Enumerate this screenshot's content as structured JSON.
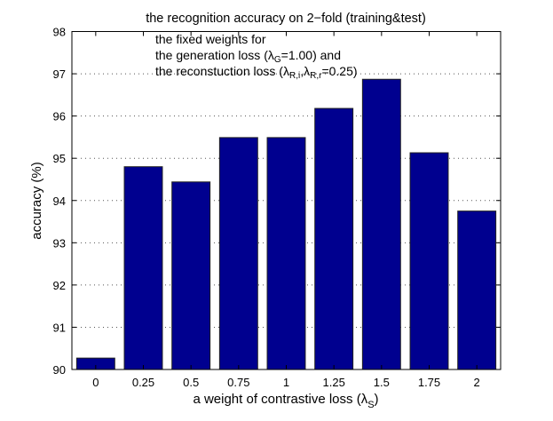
{
  "chart_data": {
    "type": "bar",
    "title": "the recognition accuracy on 2−fold (training&test)",
    "xlabel": "a weight of contrastive loss (λ",
    "xlabel_sub": "S",
    "xlabel_end": ")",
    "ylabel": "accuracy (%)",
    "categories": [
      "0",
      "0.25",
      "0.5",
      "0.75",
      "1",
      "1.25",
      "1.5",
      "1.75",
      "2"
    ],
    "values": [
      90.27,
      94.8,
      94.44,
      95.49,
      95.49,
      96.18,
      96.87,
      95.13,
      93.75
    ],
    "ylim": [
      90,
      98
    ],
    "yticks": [
      "90",
      "91",
      "92",
      "93",
      "94",
      "95",
      "96",
      "97",
      "98"
    ],
    "grid": "y-dotted",
    "bar_color": "#00008f",
    "annotation": {
      "line1": "the fixed weights for",
      "line2_a": "the generation loss (λ",
      "line2_sub": "G",
      "line2_b": "=1.00) and",
      "line3_a": "the reconstuction loss (λ",
      "line3_sub1": "R,i",
      "line3_mid": ",λ",
      "line3_sub2": "R,r",
      "line3_b": "=0.25)"
    }
  }
}
